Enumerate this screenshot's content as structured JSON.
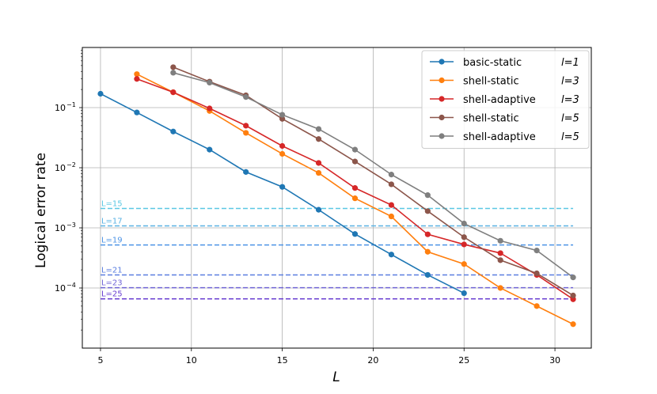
{
  "chart_data": {
    "type": "line",
    "title": "",
    "xlabel": "L",
    "ylabel": "Logical error rate",
    "xlim": [
      4,
      32
    ],
    "ylim": [
      1e-05,
      1.0
    ],
    "yscale": "log",
    "grid": true,
    "legend_position": "top-right",
    "x_ticks": [
      5,
      10,
      15,
      20,
      25,
      30
    ],
    "y_ticks": [
      {
        "value": 0.1,
        "base": "10",
        "exp": "−1"
      },
      {
        "value": 0.01,
        "base": "10",
        "exp": "−2"
      },
      {
        "value": 0.001,
        "base": "10",
        "exp": "−3"
      },
      {
        "value": 0.0001,
        "base": "10",
        "exp": "−4"
      }
    ],
    "series": [
      {
        "name": "basic-static",
        "tag": "l=1",
        "color": "#1f77b4",
        "x": [
          5,
          7,
          9,
          11,
          13,
          15,
          17,
          19,
          21,
          23,
          25
        ],
        "y": [
          0.17,
          0.083,
          0.04,
          0.02,
          0.0085,
          0.0048,
          0.002,
          0.00079,
          0.00036,
          0.000165,
          8.2e-05
        ]
      },
      {
        "name": "shell-static",
        "tag": "l=3",
        "color": "#ff7f0e",
        "x": [
          7,
          9,
          11,
          13,
          15,
          17,
          19,
          21,
          23,
          25,
          27,
          29,
          31
        ],
        "y": [
          0.36,
          0.18,
          0.088,
          0.038,
          0.017,
          0.0082,
          0.0031,
          0.00155,
          0.0004,
          0.00025,
          0.0001,
          5e-05,
          2.5e-05
        ]
      },
      {
        "name": "shell-adaptive",
        "tag": "l=3",
        "color": "#d62728",
        "x": [
          7,
          9,
          11,
          13,
          15,
          17,
          19,
          21,
          23,
          25,
          27,
          29,
          31
        ],
        "y": [
          0.3,
          0.18,
          0.097,
          0.05,
          0.023,
          0.012,
          0.0046,
          0.0024,
          0.00078,
          0.00053,
          0.00038,
          0.000165,
          6.5e-05
        ]
      },
      {
        "name": "shell-static",
        "tag": "l=5",
        "color": "#8c564b",
        "x": [
          9,
          11,
          13,
          15,
          17,
          19,
          21,
          23,
          25,
          27,
          29,
          31
        ],
        "y": [
          0.47,
          0.27,
          0.16,
          0.065,
          0.03,
          0.0127,
          0.0053,
          0.0019,
          0.0007,
          0.00029,
          0.000175,
          7.5e-05
        ]
      },
      {
        "name": "shell-adaptive",
        "tag": "l=5",
        "color": "#7f7f7f",
        "x": [
          9,
          11,
          13,
          15,
          17,
          19,
          21,
          23,
          25,
          27,
          29,
          31
        ],
        "y": [
          0.38,
          0.26,
          0.15,
          0.076,
          0.044,
          0.02,
          0.0077,
          0.0035,
          0.00118,
          0.00061,
          0.00042,
          0.00015
        ]
      }
    ],
    "threshold_lines": [
      {
        "label": "L=15",
        "value": 0.0021,
        "color": "#5bc8e3"
      },
      {
        "label": "L=17",
        "value": 0.00108,
        "color": "#5ab2e3"
      },
      {
        "label": "L=19",
        "value": 0.00052,
        "color": "#4d94e6"
      },
      {
        "label": "L=21",
        "value": 0.000165,
        "color": "#5a7ee0"
      },
      {
        "label": "L=23",
        "value": 0.000101,
        "color": "#7065d6"
      },
      {
        "label": "L=25",
        "value": 6.6e-05,
        "color": "#6a3fd1"
      }
    ]
  }
}
